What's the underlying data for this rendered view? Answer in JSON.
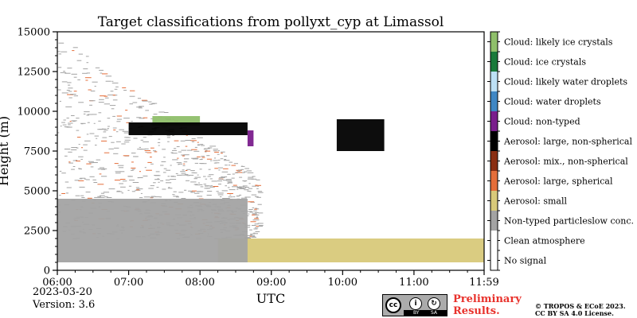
{
  "chart_data": {
    "type": "heatmap",
    "title": "Target classifications from pollyxt_cyp at Limassol",
    "xlabel": "UTC",
    "ylabel": "Height (m)",
    "x_ticks": [
      "06:00",
      "07:00",
      "08:00",
      "09:00",
      "10:00",
      "11:00",
      "11:59"
    ],
    "x_range": [
      "06:00",
      "11:59"
    ],
    "y_ticks": [
      0,
      2500,
      5000,
      7500,
      10000,
      12500,
      15000
    ],
    "ylim": [
      0,
      15000
    ],
    "grid": false,
    "legend_position": "right colorbar",
    "classes": [
      {
        "label": "Cloud: likely ice crystals",
        "color": "#8fbf6a"
      },
      {
        "label": "Cloud: ice crystals",
        "color": "#1a7a3a"
      },
      {
        "label": "Cloud: likely water droplets",
        "color": "#bde0f5"
      },
      {
        "label": "Cloud: water droplets",
        "color": "#3f87c4"
      },
      {
        "label": "Cloud: non-typed",
        "color": "#7a1e8c"
      },
      {
        "label": "Aerosol: large, non-spherical",
        "color": "#000000"
      },
      {
        "label": "Aerosol: mix., non-spherical",
        "color": "#8a2e12"
      },
      {
        "label": "Aerosol: large, spherical",
        "color": "#e56e3a"
      },
      {
        "label": "Aerosol: small",
        "color": "#d8c97a"
      },
      {
        "label": "Non-typed particleslow conc.",
        "color": "#a3a3a3"
      },
      {
        "label": "Clean atmosphere",
        "color": "#ffffff"
      },
      {
        "label": "No signal",
        "color": "#ffffff"
      }
    ],
    "layers": [
      {
        "class": "Aerosol: small",
        "x_start": "08:15",
        "x_end": "11:59",
        "bottom_m": 500,
        "top_m": 2000
      },
      {
        "class": "Non-typed particleslow conc.",
        "x_start": "06:00",
        "x_end": "08:40",
        "bottom_m": 500,
        "top_m": 4500
      },
      {
        "class": "Cloud: likely ice crystals",
        "x_start": "07:20",
        "x_end": "08:00",
        "bottom_m": 9100,
        "top_m": 9700
      },
      {
        "class": "Aerosol: large, non-spherical",
        "x_start": "07:00",
        "x_end": "08:40",
        "bottom_m": 8500,
        "top_m": 9300
      },
      {
        "class": "Cloud: non-typed",
        "x_start": "08:40",
        "x_end": "08:45",
        "bottom_m": 7800,
        "top_m": 8800
      },
      {
        "class": "Aerosol: large, non-spherical",
        "x_start": "09:55",
        "x_end": "10:35",
        "bottom_m": 7500,
        "top_m": 9500
      }
    ]
  },
  "footer": {
    "date": "2023-03-20",
    "version": "Version: 3.6",
    "preliminary_line1": "Preliminary",
    "preliminary_line2": "Results.",
    "copyright_line1": "© TROPOS & ECoE 2023.",
    "copyright_line2": "CC BY SA 4.0 License.",
    "cc_badge": {
      "cc": "cc",
      "by": "BY",
      "sa": "SA",
      "icon": "creative-commons-by-sa-icon"
    }
  }
}
